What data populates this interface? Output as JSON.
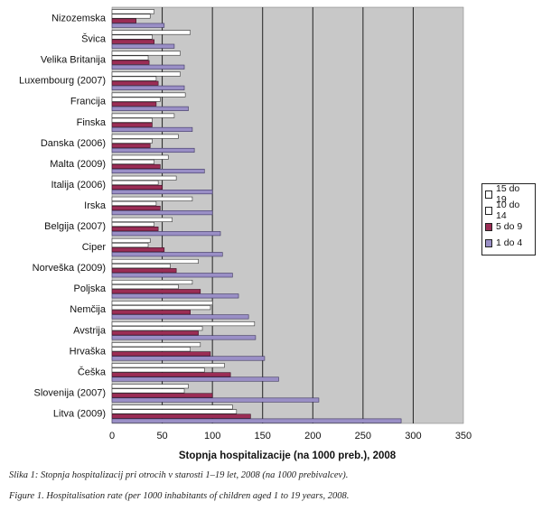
{
  "chart_data": {
    "type": "bar",
    "orientation": "horizontal",
    "xlabel": "Stopnja hospitalizacije (na 1000 preb.), 2008",
    "xlim": [
      0,
      350
    ],
    "xticks": [
      0,
      50,
      100,
      150,
      200,
      250,
      300,
      350
    ],
    "grid": "vertical",
    "legend_position": "right",
    "categories": [
      "Nizozemska",
      "Švica",
      "Velika Britanija",
      "Luxembourg (2007)",
      "Francija",
      "Finska",
      "Danska (2006)",
      "Malta (2009)",
      "Italija (2006)",
      "Irska",
      "Belgija (2007)",
      "Ciper",
      "Norveška (2009)",
      "Poljska",
      "Nemčija",
      "Avstrija",
      "Hrvaška",
      "Češka",
      "Slovenija (2007)",
      "Litva (2009)"
    ],
    "series": [
      {
        "name": "15 do 19",
        "color": "#ffffff",
        "values": [
          42,
          78,
          68,
          68,
          73,
          62,
          66,
          56,
          64,
          80,
          60,
          38,
          86,
          80,
          100,
          142,
          88,
          112,
          76,
          120
        ]
      },
      {
        "name": "10 do 14",
        "color": "#ffffff",
        "values": [
          38,
          40,
          36,
          44,
          48,
          40,
          40,
          42,
          46,
          44,
          42,
          36,
          58,
          66,
          98,
          90,
          78,
          92,
          72,
          124
        ]
      },
      {
        "name": "5 do 9",
        "color": "#9b2d55",
        "values": [
          24,
          42,
          37,
          46,
          44,
          40,
          38,
          48,
          50,
          48,
          46,
          52,
          64,
          88,
          78,
          86,
          98,
          118,
          100,
          138
        ]
      },
      {
        "name": "1 do 4",
        "color": "#9a8fc6",
        "values": [
          52,
          62,
          72,
          72,
          76,
          80,
          82,
          92,
          100,
          100,
          108,
          110,
          120,
          126,
          136,
          143,
          152,
          166,
          206,
          288
        ]
      }
    ]
  },
  "captions": {
    "sl": "Slika 1: Stopnja hospitalizacij pri otrocih v starosti 1–19 let, 2008 (na 1000 prebivalcev).",
    "en": "Figure 1. Hospitalisation rate (per 1000 inhabitants of children aged 1 to 19 years, 2008."
  }
}
